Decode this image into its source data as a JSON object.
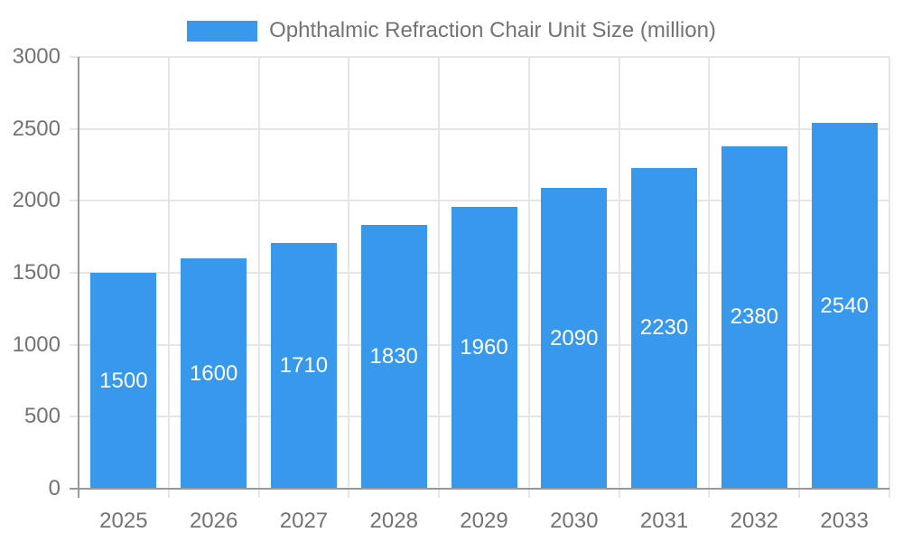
{
  "chart_data": {
    "type": "bar",
    "title": "Ophthalmic Refraction Chair Unit Size (million)",
    "categories": [
      "2025",
      "2026",
      "2027",
      "2028",
      "2029",
      "2030",
      "2031",
      "2032",
      "2033"
    ],
    "values": [
      1500,
      1600,
      1710,
      1830,
      1960,
      2090,
      2230,
      2380,
      2540
    ],
    "xlabel": "",
    "ylabel": "",
    "ylim": [
      0,
      3000
    ],
    "yticks": [
      0,
      500,
      1000,
      1500,
      2000,
      2500,
      3000
    ],
    "grid": true,
    "legend_position": "top",
    "bar_label_color": "#ffffff",
    "colors": {
      "bar": "#3899EC",
      "axis_text": "#737373",
      "grid": "#e6e6e6",
      "axis_line": "#999999",
      "background": "#ffffff"
    }
  }
}
